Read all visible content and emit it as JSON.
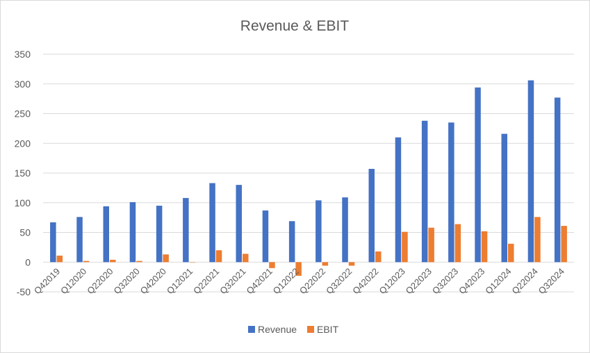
{
  "chart_data": {
    "type": "bar",
    "title": "Revenue & EBIT",
    "xlabel": "",
    "ylabel": "",
    "ylim": [
      -50,
      350
    ],
    "yticks": [
      -50,
      0,
      50,
      100,
      150,
      200,
      250,
      300,
      350
    ],
    "grid": true,
    "legend_position": "bottom",
    "categories": [
      "Q42019",
      "Q12020",
      "Q22020",
      "Q32020",
      "Q42020",
      "Q12021",
      "Q22021",
      "Q32021",
      "Q42021",
      "Q12022",
      "Q22022",
      "Q32022",
      "Q42022",
      "Q12023",
      "Q22023",
      "Q32023",
      "Q42023",
      "Q12024",
      "Q22024",
      "Q32024"
    ],
    "series": [
      {
        "name": "Revenue",
        "color": "#4472C4",
        "values": [
          67,
          76,
          94,
          101,
          95,
          108,
          133,
          130,
          87,
          69,
          104,
          109,
          157,
          210,
          238,
          235,
          294,
          216,
          306,
          277
        ]
      },
      {
        "name": "EBIT",
        "color": "#ED7D31",
        "values": [
          11,
          2,
          4,
          2,
          13,
          0,
          20,
          14,
          -10,
          -23,
          -6,
          -6,
          18,
          51,
          58,
          64,
          52,
          31,
          76,
          61
        ]
      }
    ]
  }
}
